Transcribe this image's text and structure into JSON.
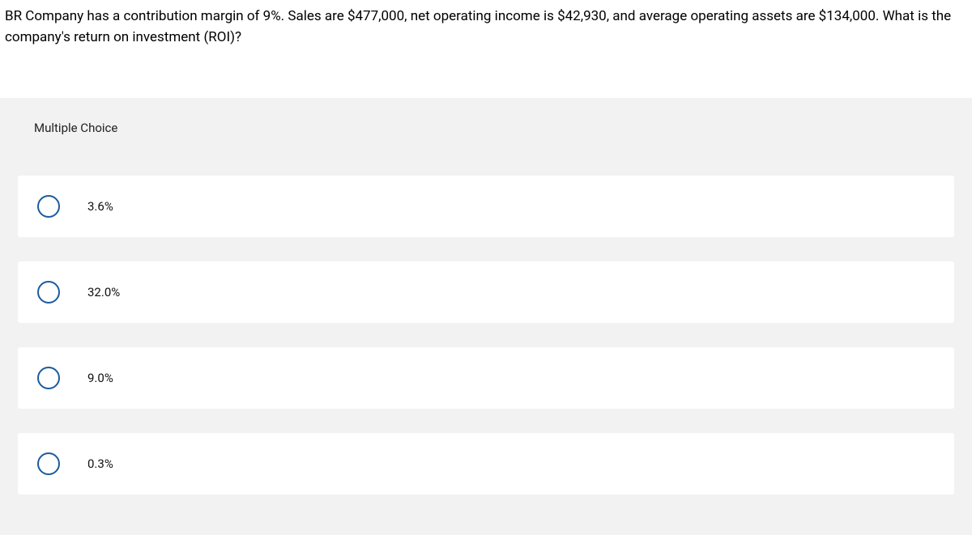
{
  "question": {
    "text": "BR Company has a contribution margin of 9%. Sales are $477,000, net operating income is $42,930, and average operating assets are $134,000. What is the company's return on investment (ROI)?"
  },
  "section": {
    "title": "Multiple Choice"
  },
  "options": [
    {
      "label": "3.6%"
    },
    {
      "label": "32.0%"
    },
    {
      "label": "9.0%"
    },
    {
      "label": "0.3%"
    }
  ],
  "colors": {
    "radio_border": "#1d5b9e",
    "option_bg": "#ffffff",
    "container_bg": "#f2f2f2"
  }
}
